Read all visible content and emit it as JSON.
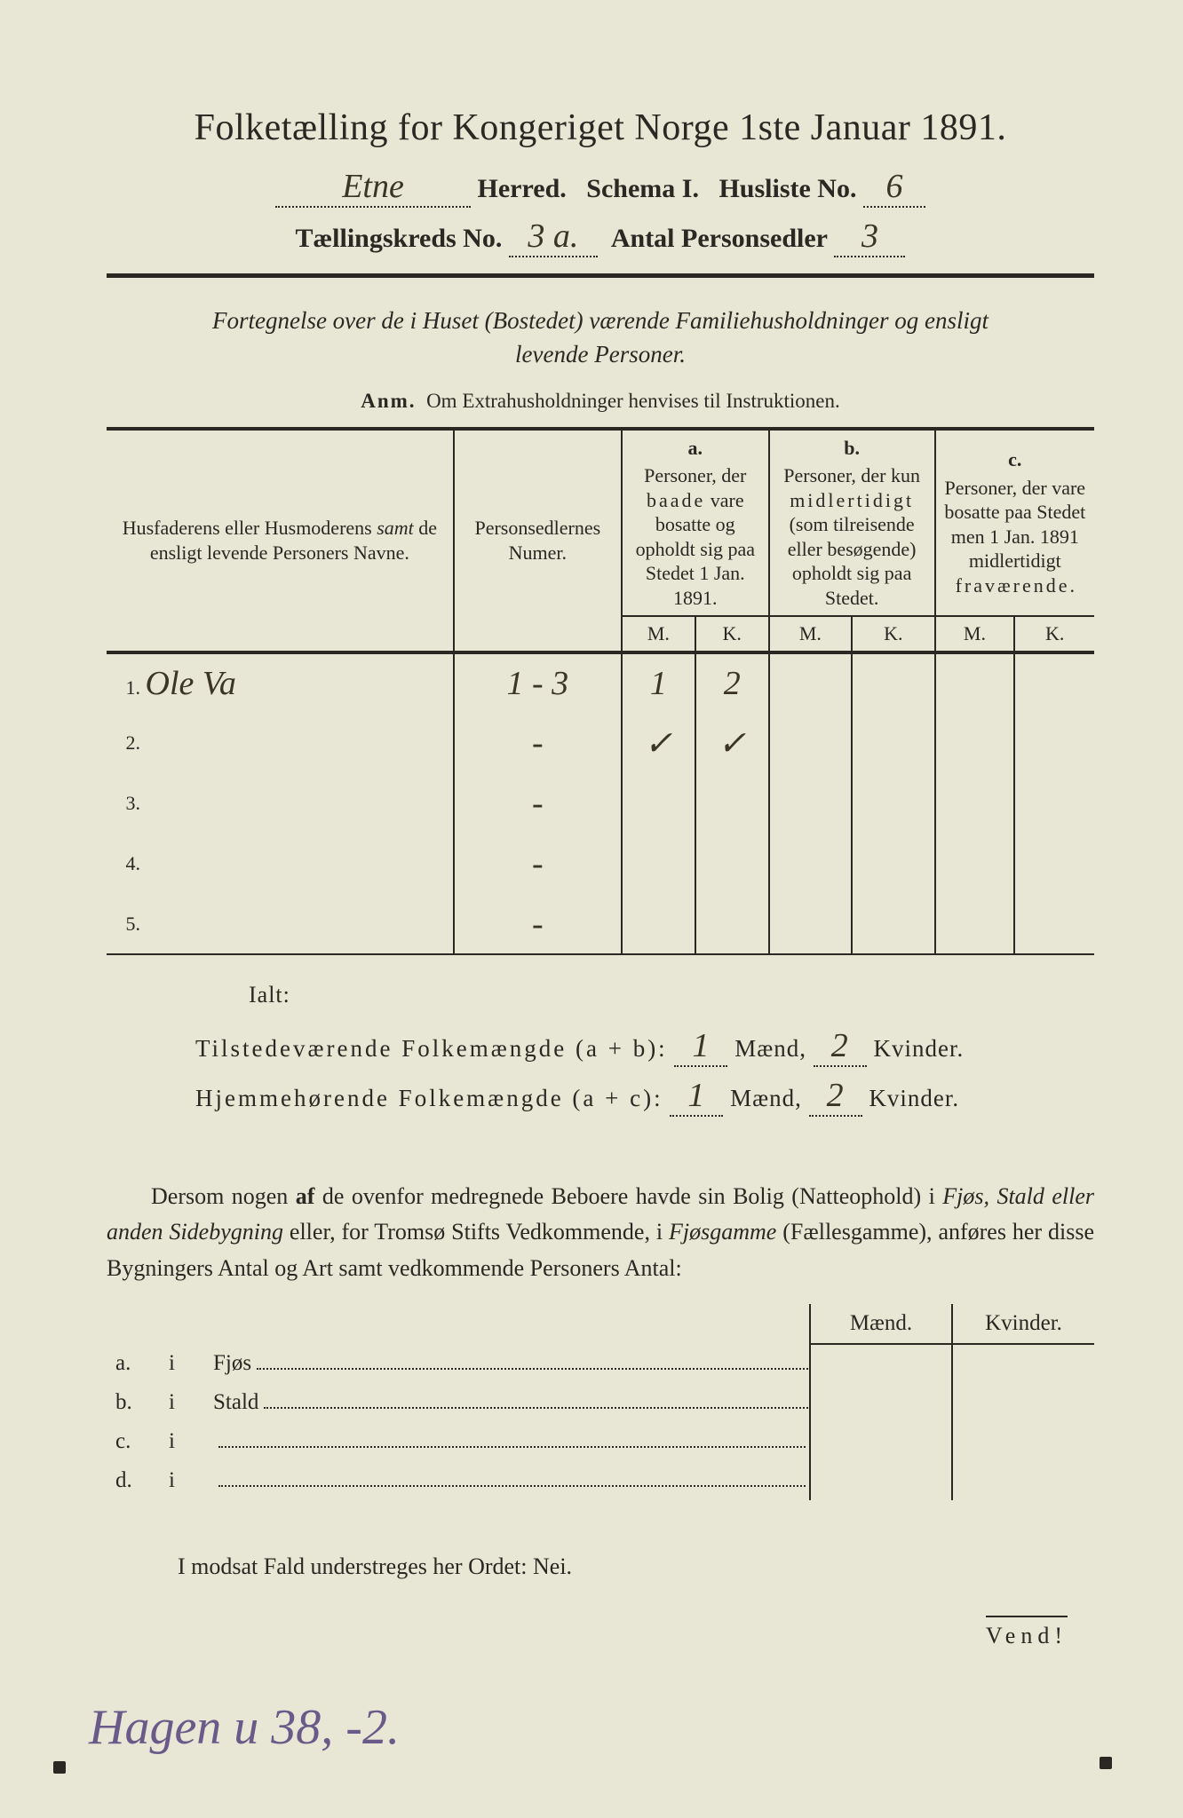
{
  "colors": {
    "paper": "#e8e6d4",
    "ink": "#2a2822",
    "handwriting": "#3a3526",
    "purple_ink": "#6a5a8a"
  },
  "typography": {
    "title_pt": 42,
    "header_pt": 30,
    "subtitle_pt": 27,
    "body_pt": 26,
    "table_head_pt": 20,
    "table_cell_pt": 24,
    "handwriting_pt": 38,
    "bottom_hand_pt": 56
  },
  "title": "Folketælling for Kongeriget Norge 1ste Januar 1891.",
  "header": {
    "herred_hand": "Etne",
    "herred_label": "Herred.",
    "schema_label": "Schema I.",
    "husliste_label": "Husliste No.",
    "husliste_no": "6",
    "kreds_label": "Tællingskreds No.",
    "kreds_no": "3 a.",
    "antal_label": "Antal Personsedler",
    "antal_no": "3"
  },
  "subtitle_line1": "Fortegnelse over de i Huset (Bostedet) værende Familiehusholdninger og ensligt",
  "subtitle_line2": "levende Personer.",
  "anm_label": "Anm.",
  "anm_text": "Om Extrahusholdninger henvises til Instruktionen.",
  "table": {
    "col1": "Husfaderens eller Husmoderens samt de ensligt levende Personers Navne.",
    "col1_italic_word": "samt",
    "col2": "Personsedlernes Numer.",
    "colA_tag": "a.",
    "colA": "Personer, der baade vare bosatte og opholdt sig paa Stedet 1 Jan. 1891.",
    "colB_tag": "b.",
    "colB": "Personer, der kun midlertidigt (som tilreisende eller besøgende) opholdt sig paa Stedet.",
    "colC_tag": "c.",
    "colC": "Personer, der vare bosatte paa Stedet men 1 Jan. 1891 midlertidigt fraværende.",
    "M": "M.",
    "K": "K.",
    "rows": [
      {
        "n": "1.",
        "name": "Ole Va",
        "sedler": "1 - 3",
        "aM": "1",
        "aK": "2",
        "bM": "",
        "bK": "",
        "cM": "",
        "cK": ""
      },
      {
        "n": "2.",
        "name": "",
        "sedler": "-",
        "aM": "✓",
        "aK": "✓",
        "bM": "",
        "bK": "",
        "cM": "",
        "cK": ""
      },
      {
        "n": "3.",
        "name": "",
        "sedler": "-",
        "aM": "",
        "aK": "",
        "bM": "",
        "bK": "",
        "cM": "",
        "cK": ""
      },
      {
        "n": "4.",
        "name": "",
        "sedler": "-",
        "aM": "",
        "aK": "",
        "bM": "",
        "bK": "",
        "cM": "",
        "cK": ""
      },
      {
        "n": "5.",
        "name": "",
        "sedler": "-",
        "aM": "",
        "aK": "",
        "bM": "",
        "bK": "",
        "cM": "",
        "cK": ""
      }
    ]
  },
  "ialt": "Ialt:",
  "sums": {
    "tilst_label": "Tilstedeværende Folkemængde (a + b):",
    "hjem_label": "Hjemmehørende Folkemængde (a + c):",
    "maend_label": "Mænd,",
    "kvinder_label": "Kvinder.",
    "tilst_m": "1",
    "tilst_k": "2",
    "hjem_m": "1",
    "hjem_k": "2"
  },
  "para": "Dersom nogen af de ovenfor medregnede Beboere havde sin Bolig (Natteophold) i Fjøs, Stald eller anden Sidebygning eller, for Tromsø Stifts Vedkommende, i Fjøsgamme (Fællesgamme), anføres her disse Bygningers Antal og Art samt vedkommende Personers Antal:",
  "bolig": {
    "maend": "Mænd.",
    "kvinder": "Kvinder.",
    "rows": [
      {
        "tag": "a.",
        "i": "i",
        "label": "Fjøs"
      },
      {
        "tag": "b.",
        "i": "i",
        "label": "Stald"
      },
      {
        "tag": "c.",
        "i": "i",
        "label": ""
      },
      {
        "tag": "d.",
        "i": "i",
        "label": ""
      }
    ]
  },
  "modsat": "I modsat Fald understreges her Ordet: Nei.",
  "vend": "Vend!",
  "bottom_handwriting": "Hagen u 38, -2."
}
